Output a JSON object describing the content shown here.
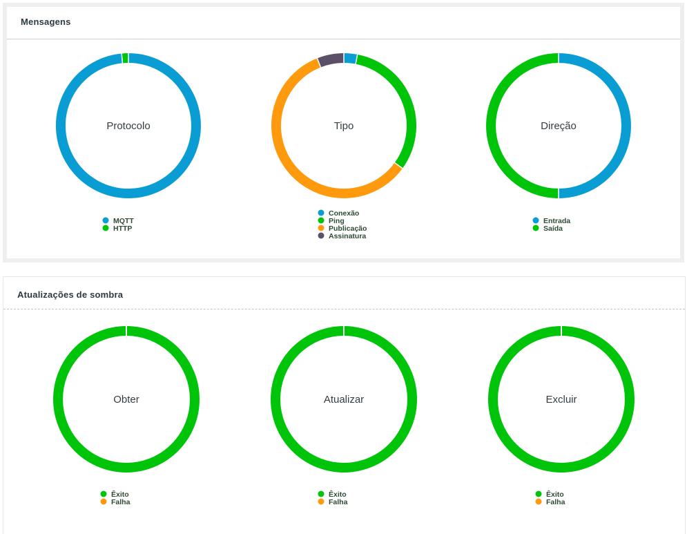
{
  "sections": {
    "messages": {
      "title": "Mensagens"
    },
    "shadow": {
      "title": "Atualizações de sombra"
    }
  },
  "colors": {
    "blue": "#0a9dd4",
    "green": "#00c40a",
    "orange": "#ff9a0f",
    "purple": "#5c5068"
  },
  "chart_data": [
    {
      "type": "pie",
      "title": "Protocolo",
      "labels": [
        "MQTT",
        "HTTP"
      ],
      "values": [
        98.5,
        1.5
      ],
      "colors": [
        "#0a9dd4",
        "#00c40a"
      ]
    },
    {
      "type": "pie",
      "title": "Tipo",
      "labels": [
        "Conexão",
        "Ping",
        "Publicação",
        "Assinatura"
      ],
      "values": [
        3,
        32,
        59,
        6
      ],
      "colors": [
        "#0a9dd4",
        "#00c40a",
        "#ff9a0f",
        "#5c5068"
      ]
    },
    {
      "type": "pie",
      "title": "Direção",
      "labels": [
        "Entrada",
        "Saída"
      ],
      "values": [
        50,
        50
      ],
      "colors": [
        "#0a9dd4",
        "#00c40a"
      ]
    },
    {
      "type": "pie",
      "title": "Obter",
      "labels": [
        "Êxito",
        "Falha"
      ],
      "values": [
        100,
        0
      ],
      "colors": [
        "#00c40a",
        "#ff9a0f"
      ]
    },
    {
      "type": "pie",
      "title": "Atualizar",
      "labels": [
        "Êxito",
        "Falha"
      ],
      "values": [
        100,
        0
      ],
      "colors": [
        "#00c40a",
        "#ff9a0f"
      ]
    },
    {
      "type": "pie",
      "title": "Excluir",
      "labels": [
        "Êxito",
        "Falha"
      ],
      "values": [
        100,
        0
      ],
      "colors": [
        "#00c40a",
        "#ff9a0f"
      ]
    }
  ]
}
